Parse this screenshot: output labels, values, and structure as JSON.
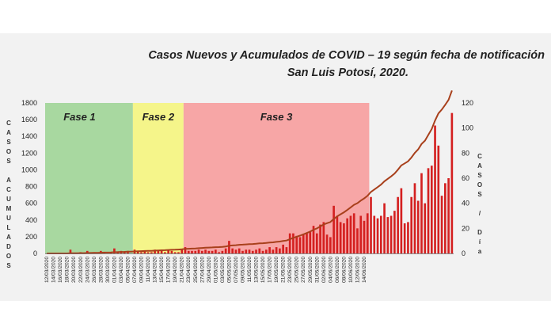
{
  "chart_data": {
    "type": "bar",
    "title": "Casos Nuevos y Acumulados de COVID – 19 según fecha de notificación",
    "subtitle": "San Luis Potosí, 2020.",
    "ylabel_left": "CASOS ACUMULADOS",
    "ylabel_right": "CASOS / Día",
    "ylim_left": [
      0,
      1800
    ],
    "yticks_left": [
      "0",
      "200",
      "400",
      "600",
      "800",
      "1000",
      "1200",
      "1400",
      "1600",
      "1800"
    ],
    "ylim_right": [
      0,
      120
    ],
    "yticks_right": [
      "0",
      "20",
      "40",
      "60",
      "80",
      "100",
      "120"
    ],
    "phases": [
      {
        "label": "Fase 1",
        "start": "12/03/2020",
        "end": "06/04/2020",
        "color": "#a8d8a0"
      },
      {
        "label": "Fase 2",
        "start": "07/04/2020",
        "end": "21/04/2020",
        "color": "#f5f58a"
      },
      {
        "label": "Fase 3",
        "start": "22/04/2020",
        "end": "15/06/2020",
        "color": "#f7a6a6"
      }
    ],
    "x_tick_labels": [
      "12/03/2020",
      "14/03/2020",
      "16/03/2020",
      "18/03/2020",
      "20/03/2020",
      "22/03/2020",
      "24/03/2020",
      "26/03/2020",
      "28/03/2020",
      "30/03/2020",
      "01/04/2020",
      "03/04/2020",
      "05/04/2020",
      "07/04/2020",
      "09/04/2020",
      "11/04/2020",
      "13/04/2020",
      "15/04/2020",
      "17/04/2020",
      "19/04/2020",
      "21/04/2020",
      "23/04/2020",
      "25/04/2020",
      "27/04/2020",
      "29/04/2020",
      "01/05/2020",
      "03/05/2020",
      "05/05/2020",
      "07/05/2020",
      "09/05/2020",
      "11/05/2020",
      "13/05/2020",
      "15/05/2020",
      "17/05/2020",
      "19/05/2020",
      "21/05/2020",
      "23/05/2020",
      "25/05/2020",
      "27/05/2020",
      "29/05/2020",
      "31/05/2020",
      "02/06/2020",
      "04/06/2020",
      "06/06/2020",
      "08/06/2020",
      "10/06/2020",
      "12/06/2020",
      "14/06/2020"
    ],
    "series": [
      {
        "name": "Casos nuevos",
        "kind": "bar",
        "axis": "right",
        "color": "#d42020",
        "values": [
          0,
          0,
          0,
          0,
          0,
          0,
          0,
          3,
          0,
          0,
          1,
          0,
          2,
          0,
          1,
          0,
          2,
          1,
          0,
          1,
          4,
          1,
          2,
          1,
          2,
          0,
          3,
          2,
          1,
          2,
          1,
          1,
          3,
          2,
          2,
          1,
          3,
          2,
          1,
          1,
          3,
          5,
          2,
          2,
          2,
          3,
          2,
          3,
          2,
          2,
          3,
          1,
          2,
          4,
          10,
          4,
          3,
          4,
          2,
          3,
          3,
          2,
          3,
          4,
          2,
          3,
          5,
          3,
          5,
          4,
          7,
          5,
          16,
          16,
          14,
          13,
          15,
          16,
          17,
          22,
          16,
          23,
          25,
          15,
          13,
          38,
          30,
          25,
          24,
          28,
          30,
          32,
          20,
          30,
          26,
          32,
          45,
          30,
          28,
          30,
          40,
          29,
          30,
          34,
          45,
          52,
          24,
          25,
          45,
          56,
          42,
          64,
          40,
          68,
          70,
          102,
          86,
          46,
          56,
          60,
          112
        ]
      },
      {
        "name": "Casos acumulados",
        "kind": "line",
        "axis": "left",
        "color": "#a8401c",
        "values": [
          0,
          0,
          0,
          0,
          0,
          0,
          0,
          3,
          3,
          3,
          4,
          4,
          6,
          6,
          7,
          7,
          9,
          10,
          10,
          11,
          15,
          16,
          18,
          19,
          21,
          21,
          24,
          26,
          27,
          29,
          30,
          31,
          34,
          36,
          38,
          39,
          42,
          44,
          45,
          46,
          49,
          54,
          56,
          58,
          60,
          63,
          65,
          68,
          70,
          72,
          75,
          76,
          78,
          82,
          92,
          96,
          99,
          103,
          105,
          108,
          111,
          113,
          116,
          120,
          122,
          125,
          130,
          133,
          138,
          142,
          149,
          154,
          170,
          186,
          200,
          213,
          228,
          244,
          261,
          283,
          299,
          322,
          347,
          362,
          375,
          413,
          443,
          468,
          492,
          520,
          550,
          582,
          602,
          632,
          658,
          690,
          735,
          765,
          793,
          823,
          863,
          892,
          922,
          956,
          1001,
          1053,
          1077,
          1102,
          1147,
          1203,
          1245,
          1309,
          1349,
          1417,
          1487,
          1589,
          1675,
          1721,
          1777,
          1837,
          1949
        ]
      }
    ]
  }
}
